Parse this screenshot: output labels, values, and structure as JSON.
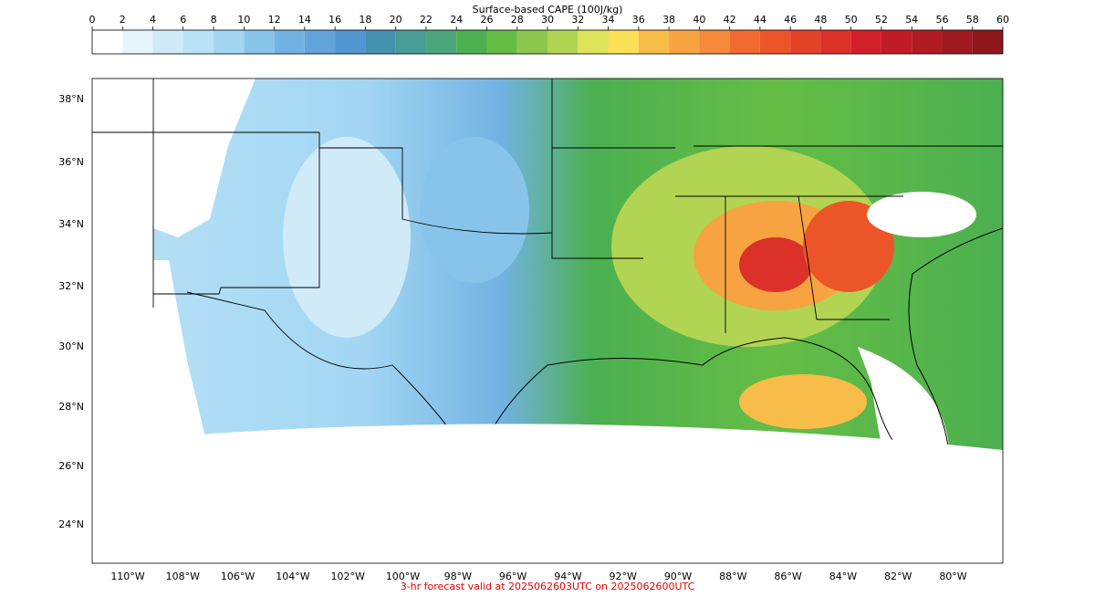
{
  "colorbar": {
    "label": "Surface-based CAPE (100J/kg)",
    "ticks": [
      0,
      2,
      4,
      6,
      8,
      10,
      12,
      14,
      16,
      18,
      20,
      22,
      24,
      26,
      28,
      30,
      32,
      34,
      36,
      38,
      40,
      42,
      44,
      46,
      48,
      50,
      52,
      54,
      56,
      58,
      60
    ],
    "colors": [
      "#ffffff",
      "#e6f4fc",
      "#d0eaf8",
      "#b9e2f6",
      "#a2d6f3",
      "#88c4ea",
      "#72b2e2",
      "#62a4da",
      "#5196d0",
      "#4592b0",
      "#479c97",
      "#4aa67a",
      "#4cb050",
      "#65bd45",
      "#8cc64d",
      "#b2d453",
      "#dde35a",
      "#fbe058",
      "#f8bd48",
      "#f7a341",
      "#f6893a",
      "#f16b31",
      "#ec5527",
      "#e44229",
      "#db3129",
      "#d11f29",
      "#c11c26",
      "#b01a23",
      "#9e1a20",
      "#8c181c"
    ]
  },
  "map": {
    "lat_labels": [
      "38°N",
      "36°N",
      "34°N",
      "32°N",
      "30°N",
      "28°N",
      "26°N",
      "24°N"
    ],
    "lon_labels": [
      "110°W",
      "108°W",
      "106°W",
      "104°W",
      "102°W",
      "100°W",
      "98°W",
      "96°W",
      "94°W",
      "92°W",
      "90°W",
      "88°W",
      "86°W",
      "84°W",
      "82°W",
      "80°W"
    ]
  },
  "caption": "3-hr forecast valid at 2025062603UTC on 2025062600UTC"
}
